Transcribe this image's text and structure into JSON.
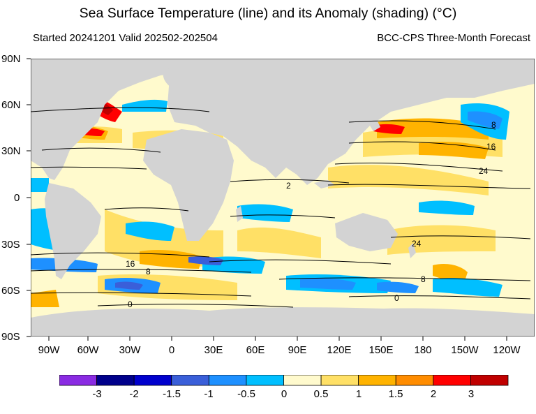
{
  "header": {
    "title": "Sea Surface Temperature (line) and its Anomaly (shading) (°C)",
    "started": "Started 20241201  Valid 202502-202504",
    "model": "BCC-CPS Three-Month Forecast"
  },
  "lat_axis": [
    "90N",
    "60N",
    "30N",
    "0",
    "30S",
    "60S",
    "90S"
  ],
  "lon_axis": [
    "90W",
    "60W",
    "30W",
    "0",
    "30E",
    "60E",
    "90E",
    "120E",
    "150E",
    "180",
    "150W",
    "120W"
  ],
  "contour_labels": [
    "8",
    "16",
    "24",
    "2",
    "24",
    "16",
    "8",
    "8",
    "0",
    "0"
  ],
  "colorbar": {
    "labels": [
      "-3",
      "-2",
      "-1.5",
      "-1",
      "-0.5",
      "0",
      "0.5",
      "1",
      "1.5",
      "2",
      "3"
    ],
    "colors": [
      "#8a2be2",
      "#00008b",
      "#0000cd",
      "#3a5fd9",
      "#1e90ff",
      "#00bfff",
      "#fffacd",
      "#ffe066",
      "#ffb300",
      "#ff8c00",
      "#ff0000",
      "#c00000"
    ]
  },
  "map_colors": {
    "land": "#d3d3d3",
    "ocean_neutral": "#fffacd",
    "ice": "#ffffff"
  }
}
